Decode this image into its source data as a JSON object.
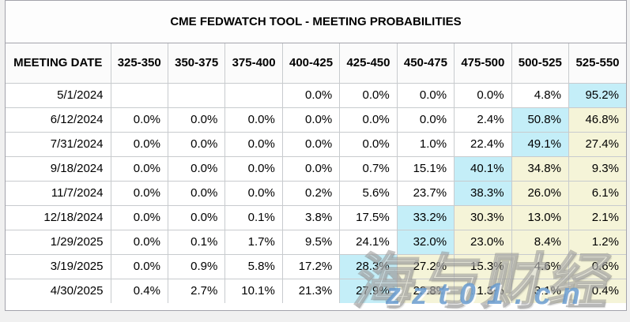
{
  "title": "CME FEDWATCH TOOL - MEETING PROBABILITIES",
  "colors": {
    "highlight_blue": "#c4eef8",
    "highlight_cream": "#f5f4d8",
    "grid_line": "#c8cbce",
    "outer_border": "#a3a3ab",
    "page_background": "#f0f0f0"
  },
  "table": {
    "columns": [
      "MEETING DATE",
      "325-350",
      "350-375",
      "375-400",
      "400-425",
      "425-450",
      "450-475",
      "475-500",
      "500-525",
      "525-550"
    ],
    "rows": [
      {
        "date": "5/1/2024",
        "values": [
          "",
          "",
          "",
          "0.0%",
          "0.0%",
          "0.0%",
          "0.0%",
          "4.8%",
          "95.2%"
        ],
        "highlights": [
          "",
          "",
          "",
          "",
          "",
          "",
          "",
          "",
          "blue"
        ]
      },
      {
        "date": "6/12/2024",
        "values": [
          "0.0%",
          "0.0%",
          "0.0%",
          "0.0%",
          "0.0%",
          "0.0%",
          "2.4%",
          "50.8%",
          "46.8%"
        ],
        "highlights": [
          "",
          "",
          "",
          "",
          "",
          "",
          "",
          "blue",
          "cream"
        ]
      },
      {
        "date": "7/31/2024",
        "values": [
          "0.0%",
          "0.0%",
          "0.0%",
          "0.0%",
          "0.0%",
          "1.0%",
          "22.4%",
          "49.1%",
          "27.4%"
        ],
        "highlights": [
          "",
          "",
          "",
          "",
          "",
          "",
          "",
          "blue",
          "cream"
        ]
      },
      {
        "date": "9/18/2024",
        "values": [
          "0.0%",
          "0.0%",
          "0.0%",
          "0.0%",
          "0.7%",
          "15.1%",
          "40.1%",
          "34.8%",
          "9.3%"
        ],
        "highlights": [
          "",
          "",
          "",
          "",
          "",
          "",
          "blue",
          "cream",
          "cream"
        ]
      },
      {
        "date": "11/7/2024",
        "values": [
          "0.0%",
          "0.0%",
          "0.0%",
          "0.2%",
          "5.6%",
          "23.7%",
          "38.3%",
          "26.0%",
          "6.1%"
        ],
        "highlights": [
          "",
          "",
          "",
          "",
          "",
          "",
          "blue",
          "cream",
          "cream"
        ]
      },
      {
        "date": "12/18/2024",
        "values": [
          "0.0%",
          "0.0%",
          "0.1%",
          "3.8%",
          "17.5%",
          "33.2%",
          "30.3%",
          "13.0%",
          "2.1%"
        ],
        "highlights": [
          "",
          "",
          "",
          "",
          "",
          "blue",
          "cream",
          "cream",
          "cream"
        ]
      },
      {
        "date": "1/29/2025",
        "values": [
          "0.0%",
          "0.1%",
          "1.7%",
          "9.5%",
          "24.1%",
          "32.0%",
          "23.0%",
          "8.4%",
          "1.2%"
        ],
        "highlights": [
          "",
          "",
          "",
          "",
          "",
          "blue",
          "cream",
          "cream",
          "cream"
        ]
      },
      {
        "date": "3/19/2025",
        "values": [
          "0.0%",
          "0.9%",
          "5.8%",
          "17.2%",
          "28.3%",
          "27.2%",
          "15.3%",
          "4.6%",
          "0.6%"
        ],
        "highlights": [
          "",
          "",
          "",
          "",
          "blue",
          "cream",
          "cream",
          "cream",
          "cream"
        ]
      },
      {
        "date": "4/30/2025",
        "values": [
          "0.4%",
          "2.7%",
          "10.1%",
          "21.3%",
          "27.9%",
          "22.8%",
          "11.3%",
          "3.1%",
          "0.4%"
        ],
        "highlights": [
          "",
          "",
          "",
          "",
          "blue",
          "cream",
          "cream",
          "cream",
          "cream"
        ]
      }
    ]
  },
  "watermark": {
    "cjk_text": "海与财经",
    "url_text": "zzt01.cn"
  }
}
